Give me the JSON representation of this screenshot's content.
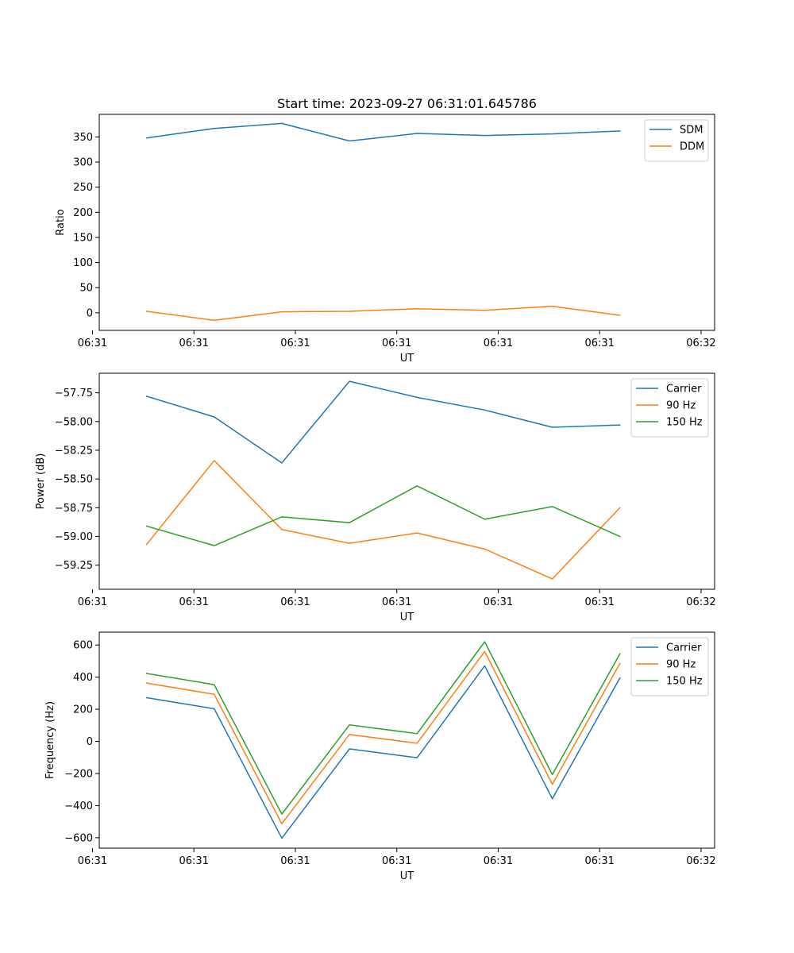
{
  "figure": {
    "title": "Start time: 2023-09-27 06:31:01.645786"
  },
  "colors": {
    "blue": "#1f77b4",
    "orange": "#ff7f0e",
    "green": "#2ca02c"
  },
  "chart_data": [
    {
      "type": "line",
      "title": "Start time: 2023-09-27 06:31:01.645786",
      "xlabel": "UT",
      "ylabel": "Ratio",
      "x": [
        1,
        2,
        3,
        4,
        5,
        6,
        7,
        8
      ],
      "xlim": [
        0.3,
        9.4
      ],
      "xticks": [
        0.2,
        1.7,
        3.2,
        4.7,
        6.2,
        7.7,
        9.2
      ],
      "xtick_labels": [
        "06:31",
        "06:31",
        "06:31",
        "06:31",
        "06:31",
        "06:31",
        "06:32"
      ],
      "ylim": [
        -35,
        395
      ],
      "yticks": [
        0,
        50,
        100,
        150,
        200,
        250,
        300,
        350
      ],
      "ytick_labels": [
        "0",
        "50",
        "100",
        "150",
        "200",
        "250",
        "300",
        "350"
      ],
      "legend_position": "top-right",
      "series": [
        {
          "name": "SDM",
          "color": "blue",
          "values": [
            348,
            367,
            377,
            342,
            357,
            353,
            356,
            362
          ]
        },
        {
          "name": "DDM",
          "color": "orange",
          "values": [
            3,
            -15,
            2,
            3,
            8,
            5,
            13,
            -5
          ]
        }
      ]
    },
    {
      "type": "line",
      "title": "",
      "xlabel": "UT",
      "ylabel": "Power (dB)",
      "x": [
        1,
        2,
        3,
        4,
        5,
        6,
        7,
        8
      ],
      "xlim": [
        0.3,
        9.4
      ],
      "xticks": [
        0.2,
        1.7,
        3.2,
        4.7,
        6.2,
        7.7,
        9.2
      ],
      "xtick_labels": [
        "06:31",
        "06:31",
        "06:31",
        "06:31",
        "06:31",
        "06:31",
        "06:32"
      ],
      "ylim": [
        -59.46,
        -57.58
      ],
      "yticks": [
        -59.25,
        -59.0,
        -58.75,
        -58.5,
        -58.25,
        -58.0,
        -57.75
      ],
      "ytick_labels": [
        "−59.25",
        "−59.00",
        "−58.75",
        "−58.50",
        "−58.25",
        "−58.00",
        "−57.75"
      ],
      "legend_position": "top-right",
      "series": [
        {
          "name": "Carrier",
          "color": "blue",
          "values": [
            -57.78,
            -57.96,
            -58.36,
            -57.65,
            -57.79,
            -57.9,
            -58.05,
            -58.03
          ]
        },
        {
          "name": "90 Hz",
          "color": "orange",
          "values": [
            -59.07,
            -58.34,
            -58.94,
            -59.06,
            -58.97,
            -59.11,
            -59.37,
            -58.75
          ]
        },
        {
          "name": "150 Hz",
          "color": "green",
          "values": [
            -58.91,
            -59.08,
            -58.83,
            -58.88,
            -58.56,
            -58.85,
            -58.74,
            -59.0
          ]
        }
      ]
    },
    {
      "type": "line",
      "title": "",
      "xlabel": "UT",
      "ylabel": "Frequency (Hz)",
      "x": [
        1,
        2,
        3,
        4,
        5,
        6,
        7,
        8
      ],
      "xlim": [
        0.3,
        9.4
      ],
      "xticks": [
        0.2,
        1.7,
        3.2,
        4.7,
        6.2,
        7.7,
        9.2
      ],
      "xtick_labels": [
        "06:31",
        "06:31",
        "06:31",
        "06:31",
        "06:31",
        "06:31",
        "06:32"
      ],
      "ylim": [
        -665,
        680
      ],
      "yticks": [
        -600,
        -400,
        -200,
        0,
        200,
        400,
        600
      ],
      "ytick_labels": [
        "−600",
        "−400",
        "−200",
        "0",
        "200",
        "400",
        "600"
      ],
      "legend_position": "top-right",
      "series": [
        {
          "name": "Carrier",
          "color": "blue",
          "values": [
            272,
            203,
            -603,
            -47,
            -102,
            470,
            -357,
            395
          ]
        },
        {
          "name": "90 Hz",
          "color": "orange",
          "values": [
            363,
            293,
            -513,
            43,
            -12,
            560,
            -267,
            485
          ]
        },
        {
          "name": "150 Hz",
          "color": "green",
          "values": [
            423,
            353,
            -453,
            103,
            48,
            620,
            -207,
            545
          ]
        }
      ]
    }
  ]
}
